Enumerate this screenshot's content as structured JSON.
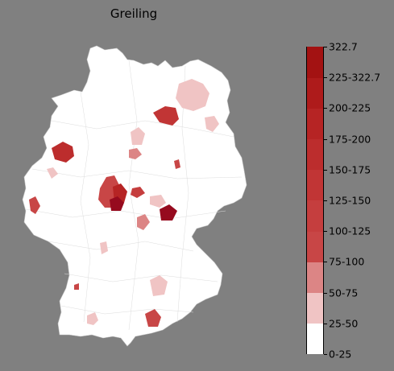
{
  "map": {
    "title": "Greiling",
    "no_data_color": "#ffffff",
    "regions": [
      {
        "name": "",
        "bin": "50-75"
      },
      {
        "name": "",
        "bin": "125-150"
      },
      {
        "name": "",
        "bin": "150-175"
      },
      {
        "name": "",
        "bin": "75-100"
      },
      {
        "name": "",
        "bin": "175-200"
      },
      {
        "name": "",
        "bin": "225-322.7"
      },
      {
        "name": "",
        "bin": "50-75"
      },
      {
        "name": "",
        "bin": "100-125"
      },
      {
        "name": "",
        "bin": "225-322.7"
      },
      {
        "name": "",
        "bin": "50-75"
      },
      {
        "name": "",
        "bin": "75-100"
      },
      {
        "name": "",
        "bin": "50-75"
      }
    ]
  },
  "legend": {
    "bins": [
      {
        "label": "0-25",
        "color": "#ffffff"
      },
      {
        "label": "25-50",
        "color": "#f0c4c4"
      },
      {
        "label": "50-75",
        "color": "#dc8585"
      },
      {
        "label": "75-100",
        "color": "#c84646"
      },
      {
        "label": "100-125",
        "color": "#c53e3e"
      },
      {
        "label": "125-150",
        "color": "#c13535"
      },
      {
        "label": "150-175",
        "color": "#bc2d2d"
      },
      {
        "label": "175-200",
        "color": "#b62424"
      },
      {
        "label": "200-225",
        "color": "#ae1b1b"
      },
      {
        "label": "225-322.7",
        "color": "#a31212"
      },
      {
        "label": "322.7",
        "color": "#960a1e"
      }
    ]
  }
}
